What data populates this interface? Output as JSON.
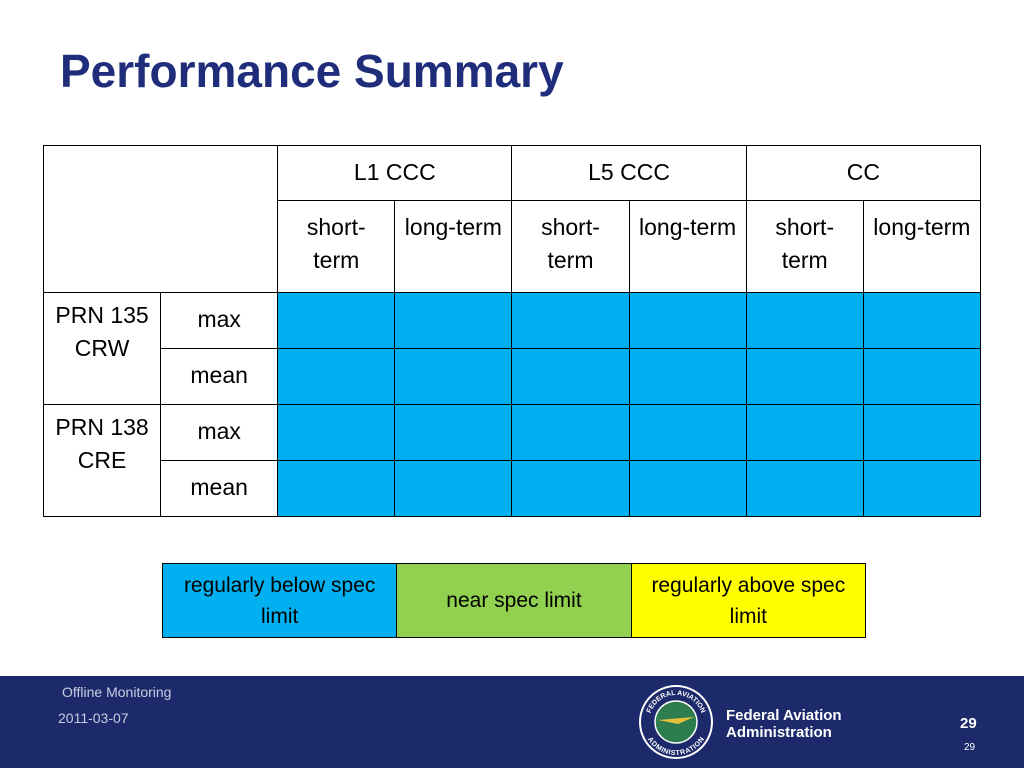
{
  "header": {
    "title": "Performance Summary"
  },
  "table": {
    "groups": [
      "L1 CCC",
      "L5 CCC",
      "CC"
    ],
    "subheaders": [
      "short-term",
      "long-term",
      "short-term",
      "long-term",
      "short-term",
      "long-term"
    ],
    "row_groups": [
      {
        "label": "PRN 135 CRW",
        "rows": [
          {
            "label": "max",
            "cells": [
              0,
              0,
              0,
              0,
              0,
              0
            ]
          },
          {
            "label": "mean",
            "cells": [
              0,
              0,
              0,
              0,
              0,
              0
            ]
          }
        ]
      },
      {
        "label": "PRN 138 CRE",
        "rows": [
          {
            "label": "max",
            "cells": [
              0,
              0,
              0,
              0,
              0,
              0
            ]
          },
          {
            "label": "mean",
            "cells": [
              0,
              0,
              0,
              0,
              0,
              0
            ]
          }
        ]
      }
    ]
  },
  "legend": [
    {
      "label": "regularly below spec limit",
      "color": "#00b0f0"
    },
    {
      "label": "near spec limit",
      "color": "#92d050"
    },
    {
      "label": "regularly above spec limit",
      "color": "#ffff00"
    }
  ],
  "footer": {
    "topic": "Offline Monitoring",
    "date": "2011-03-07",
    "agency": "Federal Aviation Administration",
    "page": "29",
    "page_small": "29",
    "seal_top": "FEDERAL AVIATION",
    "seal_bottom": "ADMINISTRATION"
  }
}
